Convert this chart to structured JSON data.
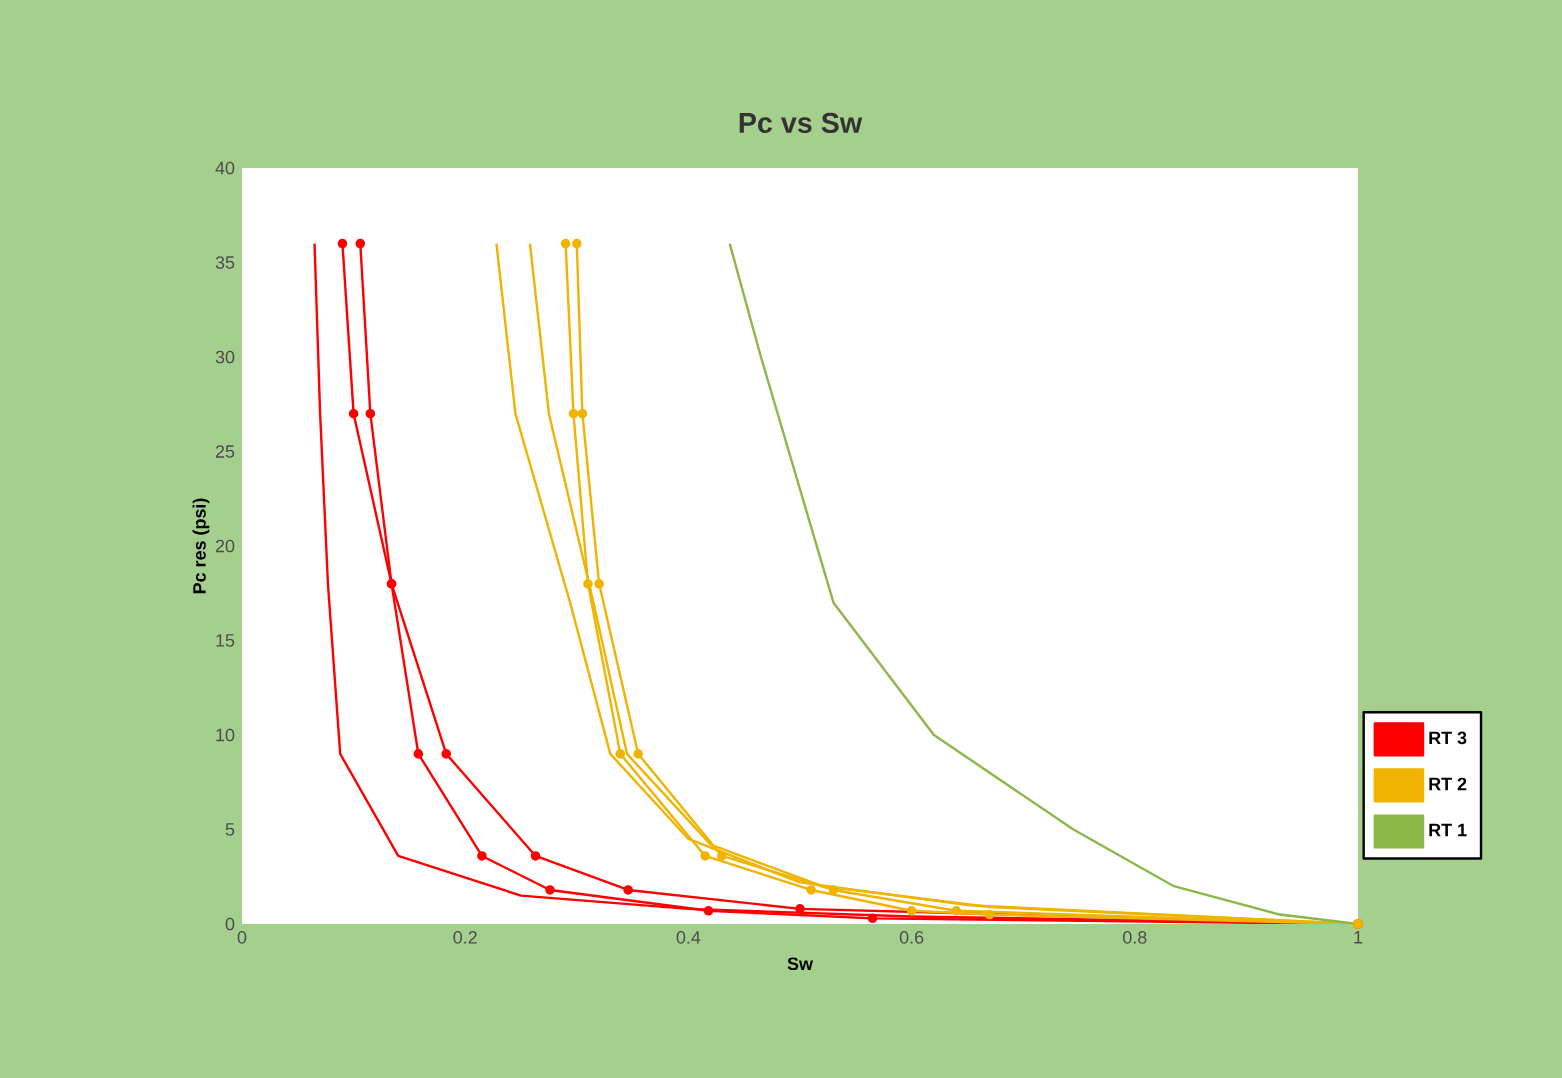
{
  "chart_data": {
    "type": "line",
    "title": "Pc vs Sw",
    "xlabel": "Sw",
    "ylabel": "Pc res (psi)",
    "xlim": [
      0,
      1
    ],
    "ylim": [
      0,
      40
    ],
    "xticks": [
      0,
      0.2,
      0.4,
      0.6,
      0.8,
      1
    ],
    "yticks": [
      0,
      5,
      10,
      15,
      20,
      25,
      30,
      35,
      40
    ],
    "grid": false,
    "legend": "right",
    "line_style": "solid",
    "series": [
      {
        "name": "RT 3",
        "color": "#ff0000",
        "marker": "none",
        "x": [
          0.065,
          0.07,
          0.077,
          0.088,
          0.14,
          0.25,
          0.4,
          0.6,
          1
        ],
        "values": [
          36,
          27,
          18,
          9,
          3.6,
          1.5,
          0.8,
          0.4,
          0
        ]
      },
      {
        "color": "#ff0000",
        "marker": "circle",
        "x": [
          0.09,
          0.1,
          0.134,
          0.183,
          0.263,
          0.346,
          0.5,
          1
        ],
        "values": [
          36,
          27,
          18,
          9,
          3.6,
          1.8,
          0.8,
          0
        ]
      },
      {
        "color": "#ff0000",
        "marker": "circle",
        "x": [
          0.106,
          0.115,
          0.134,
          0.158,
          0.215,
          0.276,
          0.418,
          0.565,
          1
        ],
        "values": [
          36,
          27,
          18,
          9,
          3.6,
          1.8,
          0.7,
          0.3,
          0
        ]
      },
      {
        "name": "RT 2",
        "color": "#f0b400",
        "marker": "none",
        "x": [
          0.228,
          0.245,
          0.294,
          0.33,
          0.4,
          0.5,
          0.65,
          1
        ],
        "values": [
          36,
          27,
          17,
          9,
          4.5,
          2.2,
          1,
          0
        ]
      },
      {
        "color": "#f0b400",
        "marker": "none",
        "x": [
          0.258,
          0.275,
          0.315,
          0.345,
          0.42,
          0.52,
          0.67,
          1
        ],
        "values": [
          36,
          27,
          17,
          9,
          4.2,
          2,
          0.9,
          0
        ]
      },
      {
        "color": "#f0b400",
        "marker": "circle",
        "x": [
          0.29,
          0.297,
          0.31,
          0.339,
          0.415,
          0.51,
          0.6,
          0.67,
          1
        ],
        "values": [
          36,
          27,
          18,
          9,
          3.6,
          1.8,
          0.7,
          0.5,
          0
        ]
      },
      {
        "color": "#f0b400",
        "marker": "circle",
        "x": [
          0.3,
          0.305,
          0.32,
          0.355,
          0.43,
          0.53,
          0.64,
          1
        ],
        "values": [
          36,
          27,
          18,
          9,
          3.6,
          1.8,
          0.7,
          0
        ]
      },
      {
        "name": "RT 1",
        "color": "#8ab848",
        "marker": "none",
        "x": [
          0.437,
          0.465,
          0.53,
          0.62,
          0.745,
          0.835,
          0.93,
          1
        ],
        "values": [
          36,
          30,
          17,
          10,
          5,
          2,
          0.5,
          0
        ]
      }
    ]
  }
}
